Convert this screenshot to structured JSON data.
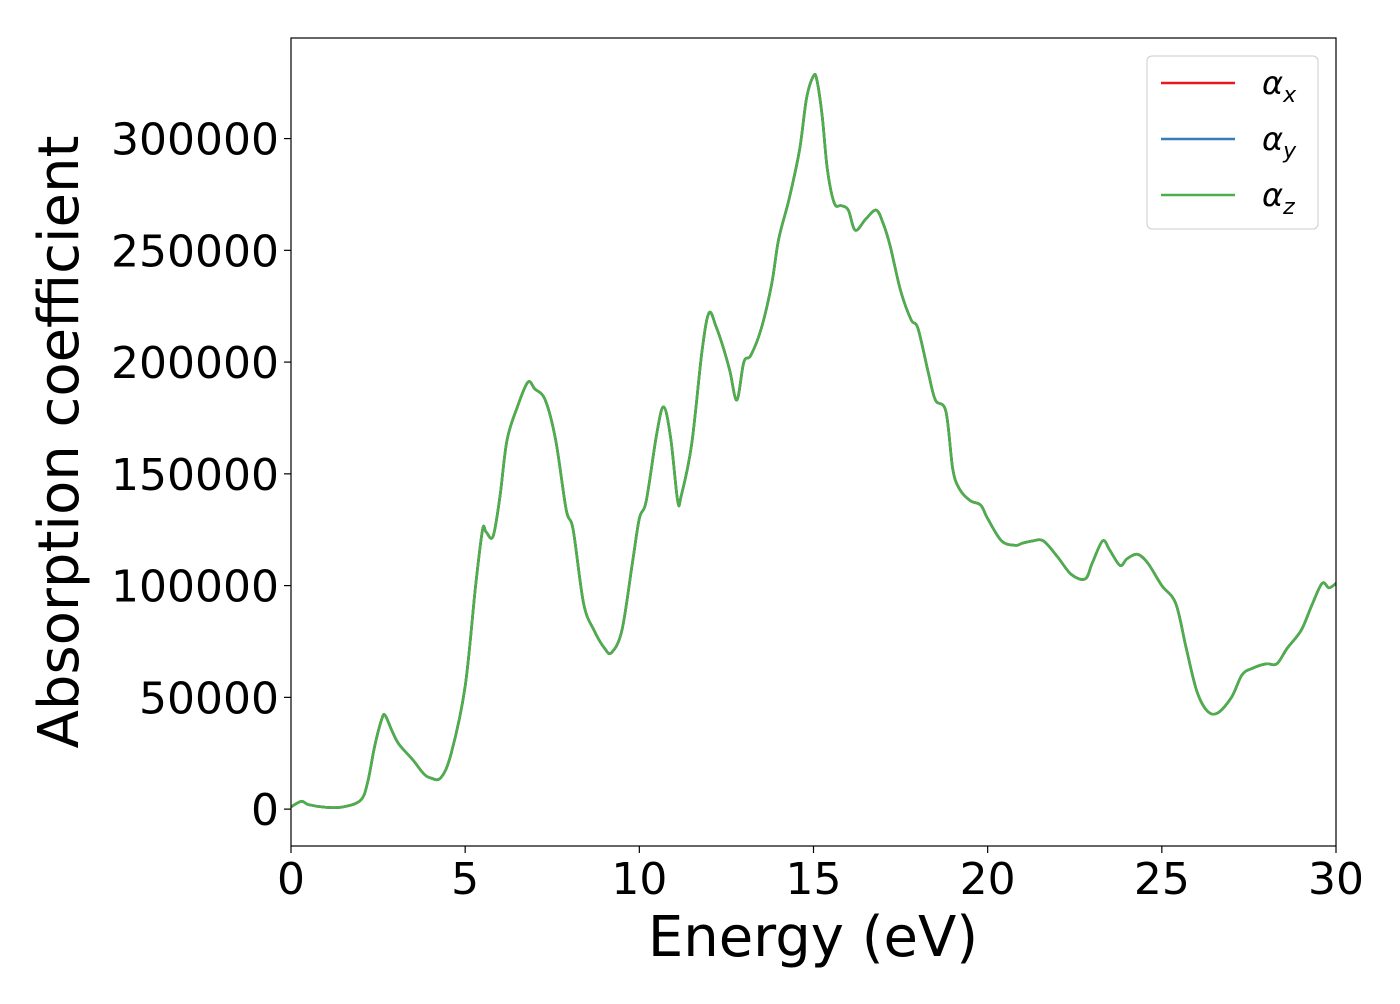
{
  "chart_data": {
    "type": "line",
    "title": "",
    "xlabel": "Energy (eV)",
    "ylabel": "Absorption coefficient",
    "xlim": [
      0,
      30
    ],
    "ylim": [
      -16500,
      345000
    ],
    "grid": false,
    "legend_position": "top-right",
    "x_ticks": [
      0,
      5,
      10,
      15,
      20,
      25,
      30
    ],
    "x_tick_labels": [
      "0",
      "5",
      "10",
      "15",
      "20",
      "25",
      "30"
    ],
    "y_ticks": [
      0,
      50000,
      100000,
      150000,
      200000,
      250000,
      300000
    ],
    "y_tick_labels": [
      "0",
      "50000",
      "100000",
      "150000",
      "200000",
      "250000",
      "300000"
    ],
    "x": [
      0,
      0.3,
      0.5,
      1.0,
      1.5,
      2.0,
      2.2,
      2.4,
      2.6,
      2.7,
      2.9,
      3.1,
      3.5,
      3.8,
      4.0,
      4.3,
      4.6,
      5.0,
      5.3,
      5.5,
      5.6,
      5.8,
      6.0,
      6.2,
      6.5,
      6.8,
      7.0,
      7.3,
      7.6,
      7.9,
      8.1,
      8.4,
      8.7,
      9.0,
      9.2,
      9.5,
      9.8,
      10.0,
      10.2,
      10.5,
      10.7,
      10.9,
      11.1,
      11.2,
      11.5,
      11.8,
      12.0,
      12.2,
      12.4,
      12.6,
      12.8,
      13.0,
      13.2,
      13.5,
      13.8,
      14.0,
      14.3,
      14.6,
      14.8,
      15.0,
      15.1,
      15.25,
      15.4,
      15.6,
      15.8,
      16.0,
      16.2,
      16.5,
      16.8,
      17.0,
      17.2,
      17.5,
      17.8,
      18.0,
      18.3,
      18.5,
      18.8,
      19.0,
      19.2,
      19.5,
      19.8,
      20.0,
      20.4,
      20.8,
      21.0,
      21.3,
      21.6,
      22.0,
      22.4,
      22.8,
      23.0,
      23.3,
      23.5,
      23.8,
      24.0,
      24.3,
      24.6,
      25.0,
      25.4,
      25.7,
      26.0,
      26.3,
      26.6,
      27.0,
      27.3,
      27.6,
      28.0,
      28.3,
      28.6,
      29.0,
      29.3,
      29.6,
      29.8,
      30.0
    ],
    "series": [
      {
        "name": "α_x",
        "color": "#e41a1c",
        "values": [
          1000,
          3500,
          2000,
          800,
          1000,
          4000,
          12000,
          28000,
          40000,
          42000,
          35000,
          29000,
          22000,
          16000,
          14000,
          14000,
          25000,
          55000,
          100000,
          125000,
          124000,
          122000,
          140000,
          165000,
          180000,
          191000,
          188000,
          183000,
          165000,
          134000,
          125000,
          92000,
          80000,
          72000,
          70000,
          80000,
          110000,
          130000,
          138000,
          168000,
          180000,
          166000,
          138000,
          140000,
          163000,
          205000,
          222000,
          216000,
          207000,
          196000,
          183000,
          200000,
          203000,
          215000,
          235000,
          255000,
          273000,
          295000,
          318000,
          328000,
          326000,
          310000,
          286000,
          271000,
          270000,
          268000,
          259000,
          264000,
          268000,
          262000,
          252000,
          232000,
          219000,
          215000,
          195000,
          183000,
          178000,
          152000,
          143000,
          138000,
          136000,
          130000,
          120000,
          118000,
          119000,
          120000,
          120000,
          113000,
          105000,
          103000,
          110000,
          120000,
          116000,
          109000,
          112000,
          114000,
          110000,
          100000,
          92000,
          72000,
          53000,
          44000,
          43000,
          50000,
          60000,
          63000,
          65000,
          65000,
          72000,
          80000,
          91000,
          101000,
          99000,
          101000
        ]
      },
      {
        "name": "α_y",
        "color": "#377eb8",
        "values": [
          1000,
          3500,
          2000,
          800,
          1000,
          4000,
          12000,
          28000,
          40000,
          42000,
          35000,
          29000,
          22000,
          16000,
          14000,
          14000,
          25000,
          55000,
          100000,
          125000,
          124000,
          122000,
          140000,
          165000,
          180000,
          191000,
          188000,
          183000,
          165000,
          134000,
          125000,
          92000,
          80000,
          72000,
          70000,
          80000,
          110000,
          130000,
          138000,
          168000,
          180000,
          166000,
          138000,
          140000,
          163000,
          205000,
          222000,
          216000,
          207000,
          196000,
          183000,
          200000,
          203000,
          215000,
          235000,
          255000,
          273000,
          295000,
          318000,
          328000,
          326000,
          310000,
          286000,
          271000,
          270000,
          268000,
          259000,
          264000,
          268000,
          262000,
          252000,
          232000,
          219000,
          215000,
          195000,
          183000,
          178000,
          152000,
          143000,
          138000,
          136000,
          130000,
          120000,
          118000,
          119000,
          120000,
          120000,
          113000,
          105000,
          103000,
          110000,
          120000,
          116000,
          109000,
          112000,
          114000,
          110000,
          100000,
          92000,
          72000,
          53000,
          44000,
          43000,
          50000,
          60000,
          63000,
          65000,
          65000,
          72000,
          80000,
          91000,
          101000,
          99000,
          101000
        ]
      },
      {
        "name": "α_z",
        "color": "#4daf4a",
        "values": [
          1000,
          3500,
          2000,
          800,
          1000,
          4000,
          12000,
          28000,
          40000,
          42000,
          35000,
          29000,
          22000,
          16000,
          14000,
          14000,
          25000,
          55000,
          100000,
          125000,
          124000,
          122000,
          140000,
          165000,
          180000,
          191000,
          188000,
          183000,
          165000,
          134000,
          125000,
          92000,
          80000,
          72000,
          70000,
          80000,
          110000,
          130000,
          138000,
          168000,
          180000,
          166000,
          138000,
          140000,
          163000,
          205000,
          222000,
          216000,
          207000,
          196000,
          183000,
          200000,
          203000,
          215000,
          235000,
          255000,
          273000,
          295000,
          318000,
          328000,
          326000,
          310000,
          286000,
          271000,
          270000,
          268000,
          259000,
          264000,
          268000,
          262000,
          252000,
          232000,
          219000,
          215000,
          195000,
          183000,
          178000,
          152000,
          143000,
          138000,
          136000,
          130000,
          120000,
          118000,
          119000,
          120000,
          120000,
          113000,
          105000,
          103000,
          110000,
          120000,
          116000,
          109000,
          112000,
          114000,
          110000,
          100000,
          92000,
          72000,
          53000,
          44000,
          43000,
          50000,
          60000,
          63000,
          65000,
          65000,
          72000,
          80000,
          91000,
          101000,
          99000,
          101000
        ]
      }
    ],
    "legend": [
      {
        "symbol": "α",
        "subscript": "x",
        "color": "#e41a1c"
      },
      {
        "symbol": "α",
        "subscript": "y",
        "color": "#377eb8"
      },
      {
        "symbol": "α",
        "subscript": "z",
        "color": "#4daf4a"
      }
    ]
  }
}
